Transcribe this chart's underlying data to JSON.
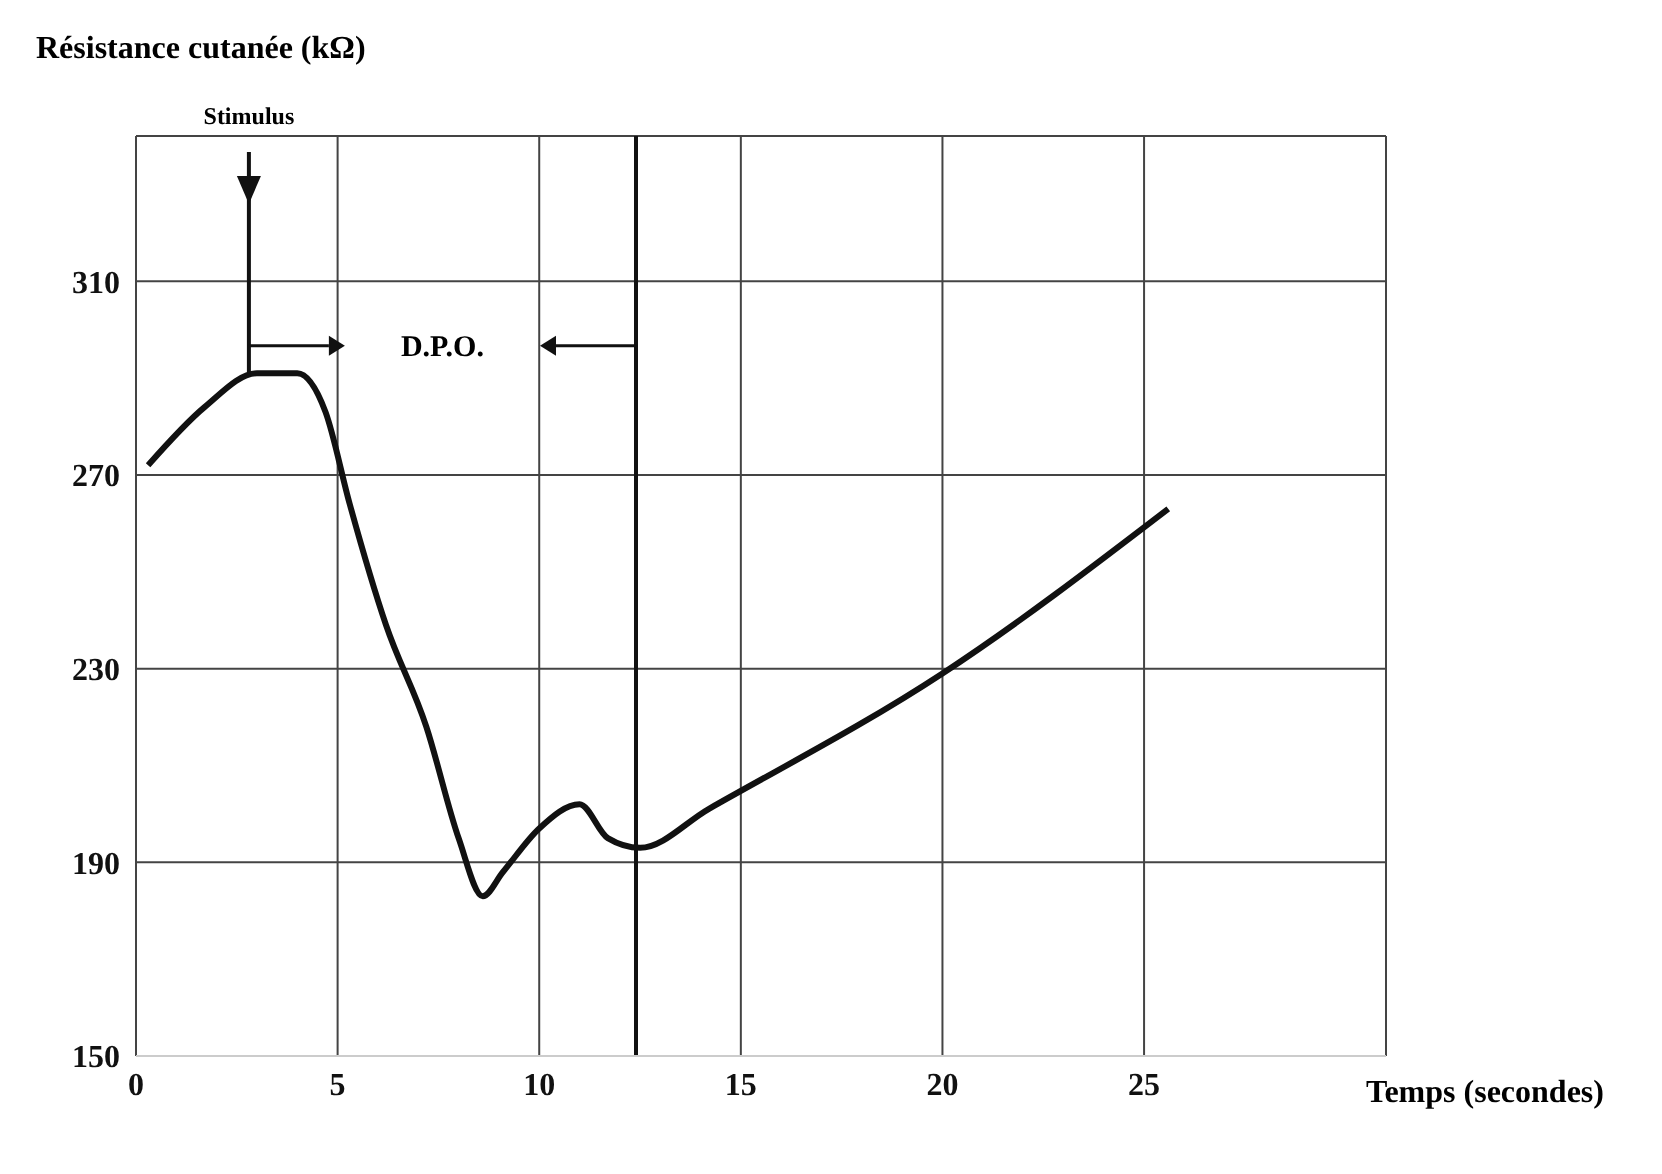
{
  "chart_data": {
    "type": "line",
    "ylabel": "Résistance cutanée (kΩ)",
    "xlabel": "Temps (secondes)",
    "x": [
      0.3,
      1.7,
      3.0,
      4.0,
      4.7,
      5.3,
      6.2,
      7.2,
      8.0,
      8.6,
      9.1,
      10.0,
      11.0,
      11.7,
      12.5,
      14.2,
      20.0,
      25.6
    ],
    "series": [
      {
        "color": "#111111",
        "values": [
          272,
          284,
          291,
          291,
          283,
          264,
          239,
          218,
          195,
          183,
          188,
          197,
          202,
          195,
          193,
          201,
          229,
          263
        ]
      }
    ],
    "xlim": [
      0,
      31
    ],
    "xticks": [
      0,
      5,
      10,
      15,
      20,
      25
    ],
    "ylim": [
      150,
      340
    ],
    "yticks": [
      150,
      190,
      230,
      270,
      310
    ],
    "grid": true,
    "marker": "none",
    "line_style": "solid",
    "ref_lines": [
      {
        "axis": "x",
        "value": 12.4,
        "label": null,
        "color": "#111111"
      }
    ],
    "annotations": [
      {
        "text": "Stimulus",
        "x": 2.8,
        "y": 291
      },
      "D.P.O."
    ]
  }
}
